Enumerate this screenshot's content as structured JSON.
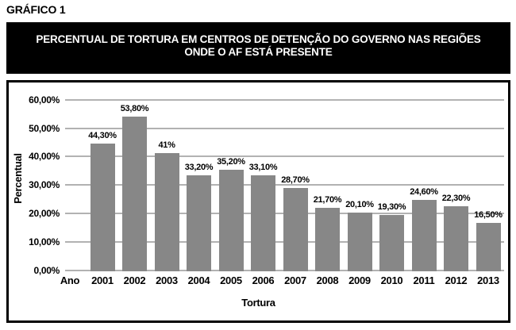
{
  "page_title": "GRÁFICO 1",
  "banner": {
    "title_lines": [
      "PERCENTUAL DE TORTURA EM CENTROS DE DETENÇÃO DO GOVERNO NAS REGIÕES",
      "ONDE O AF ESTÁ PRESENTE"
    ]
  },
  "chart_data": {
    "type": "bar",
    "title": "PERCENTUAL DE TORTURA EM CENTROS DE DETENÇÃO DO GOVERNO NAS REGIÕES ONDE O AF ESTÁ PRESENTE",
    "categories": [
      "2001",
      "2002",
      "2003",
      "2004",
      "2005",
      "2006",
      "2007",
      "2008",
      "2009",
      "2010",
      "2011",
      "2012",
      "2013"
    ],
    "values": [
      44.3,
      53.8,
      41,
      33.2,
      35.2,
      33.1,
      28.7,
      21.7,
      20.1,
      19.3,
      24.6,
      22.3,
      16.5
    ],
    "bar_labels": [
      "44,30%",
      "53,80%",
      "41%",
      "33,20%",
      "35,20%",
      "33,10%",
      "28,70%",
      "21,70%",
      "20,10%",
      "19,30%",
      "24,60%",
      "22,30%",
      "16,50%"
    ],
    "xlabel": "Tortura",
    "ylabel": "Percentual",
    "x_axis_corner_label": "Ano",
    "y_ticks": [
      0,
      10,
      20,
      30,
      40,
      50,
      60
    ],
    "y_tick_labels": [
      "0,00%",
      "10,00%",
      "20,00%",
      "30,00%",
      "40,00%",
      "50,00%",
      "60,00%"
    ],
    "ylim": [
      0,
      60
    ],
    "grid": true,
    "legend": false,
    "bar_color": "#878787",
    "gridline_color": "#b2b2b2",
    "text_color": "#000000"
  }
}
